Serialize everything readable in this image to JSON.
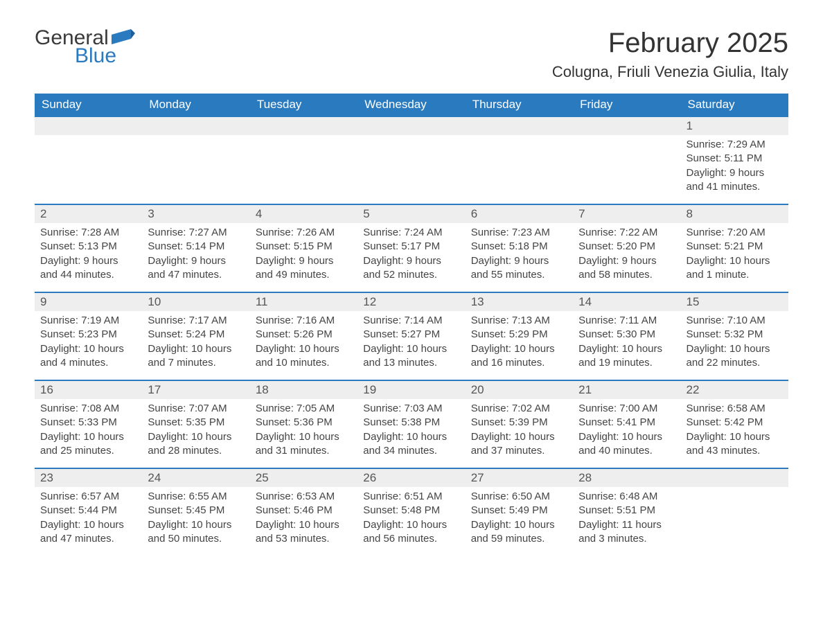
{
  "logo": {
    "text1": "General",
    "text2": "Blue",
    "flag_color": "#2a7ac0"
  },
  "title": "February 2025",
  "location": "Colugna, Friuli Venezia Giulia, Italy",
  "colors": {
    "header_bg": "#2a7ac0",
    "header_text": "#ffffff",
    "daynum_bg": "#eeeeee",
    "row_border": "#2a7ac0",
    "body_text": "#444444"
  },
  "day_headers": [
    "Sunday",
    "Monday",
    "Tuesday",
    "Wednesday",
    "Thursday",
    "Friday",
    "Saturday"
  ],
  "weeks": [
    [
      null,
      null,
      null,
      null,
      null,
      null,
      {
        "d": "1",
        "sunrise": "7:29 AM",
        "sunset": "5:11 PM",
        "daylight": "9 hours and 41 minutes."
      }
    ],
    [
      {
        "d": "2",
        "sunrise": "7:28 AM",
        "sunset": "5:13 PM",
        "daylight": "9 hours and 44 minutes."
      },
      {
        "d": "3",
        "sunrise": "7:27 AM",
        "sunset": "5:14 PM",
        "daylight": "9 hours and 47 minutes."
      },
      {
        "d": "4",
        "sunrise": "7:26 AM",
        "sunset": "5:15 PM",
        "daylight": "9 hours and 49 minutes."
      },
      {
        "d": "5",
        "sunrise": "7:24 AM",
        "sunset": "5:17 PM",
        "daylight": "9 hours and 52 minutes."
      },
      {
        "d": "6",
        "sunrise": "7:23 AM",
        "sunset": "5:18 PM",
        "daylight": "9 hours and 55 minutes."
      },
      {
        "d": "7",
        "sunrise": "7:22 AM",
        "sunset": "5:20 PM",
        "daylight": "9 hours and 58 minutes."
      },
      {
        "d": "8",
        "sunrise": "7:20 AM",
        "sunset": "5:21 PM",
        "daylight": "10 hours and 1 minute."
      }
    ],
    [
      {
        "d": "9",
        "sunrise": "7:19 AM",
        "sunset": "5:23 PM",
        "daylight": "10 hours and 4 minutes."
      },
      {
        "d": "10",
        "sunrise": "7:17 AM",
        "sunset": "5:24 PM",
        "daylight": "10 hours and 7 minutes."
      },
      {
        "d": "11",
        "sunrise": "7:16 AM",
        "sunset": "5:26 PM",
        "daylight": "10 hours and 10 minutes."
      },
      {
        "d": "12",
        "sunrise": "7:14 AM",
        "sunset": "5:27 PM",
        "daylight": "10 hours and 13 minutes."
      },
      {
        "d": "13",
        "sunrise": "7:13 AM",
        "sunset": "5:29 PM",
        "daylight": "10 hours and 16 minutes."
      },
      {
        "d": "14",
        "sunrise": "7:11 AM",
        "sunset": "5:30 PM",
        "daylight": "10 hours and 19 minutes."
      },
      {
        "d": "15",
        "sunrise": "7:10 AM",
        "sunset": "5:32 PM",
        "daylight": "10 hours and 22 minutes."
      }
    ],
    [
      {
        "d": "16",
        "sunrise": "7:08 AM",
        "sunset": "5:33 PM",
        "daylight": "10 hours and 25 minutes."
      },
      {
        "d": "17",
        "sunrise": "7:07 AM",
        "sunset": "5:35 PM",
        "daylight": "10 hours and 28 minutes."
      },
      {
        "d": "18",
        "sunrise": "7:05 AM",
        "sunset": "5:36 PM",
        "daylight": "10 hours and 31 minutes."
      },
      {
        "d": "19",
        "sunrise": "7:03 AM",
        "sunset": "5:38 PM",
        "daylight": "10 hours and 34 minutes."
      },
      {
        "d": "20",
        "sunrise": "7:02 AM",
        "sunset": "5:39 PM",
        "daylight": "10 hours and 37 minutes."
      },
      {
        "d": "21",
        "sunrise": "7:00 AM",
        "sunset": "5:41 PM",
        "daylight": "10 hours and 40 minutes."
      },
      {
        "d": "22",
        "sunrise": "6:58 AM",
        "sunset": "5:42 PM",
        "daylight": "10 hours and 43 minutes."
      }
    ],
    [
      {
        "d": "23",
        "sunrise": "6:57 AM",
        "sunset": "5:44 PM",
        "daylight": "10 hours and 47 minutes."
      },
      {
        "d": "24",
        "sunrise": "6:55 AM",
        "sunset": "5:45 PM",
        "daylight": "10 hours and 50 minutes."
      },
      {
        "d": "25",
        "sunrise": "6:53 AM",
        "sunset": "5:46 PM",
        "daylight": "10 hours and 53 minutes."
      },
      {
        "d": "26",
        "sunrise": "6:51 AM",
        "sunset": "5:48 PM",
        "daylight": "10 hours and 56 minutes."
      },
      {
        "d": "27",
        "sunrise": "6:50 AM",
        "sunset": "5:49 PM",
        "daylight": "10 hours and 59 minutes."
      },
      {
        "d": "28",
        "sunrise": "6:48 AM",
        "sunset": "5:51 PM",
        "daylight": "11 hours and 3 minutes."
      },
      null
    ]
  ],
  "labels": {
    "sunrise": "Sunrise: ",
    "sunset": "Sunset: ",
    "daylight": "Daylight: "
  }
}
